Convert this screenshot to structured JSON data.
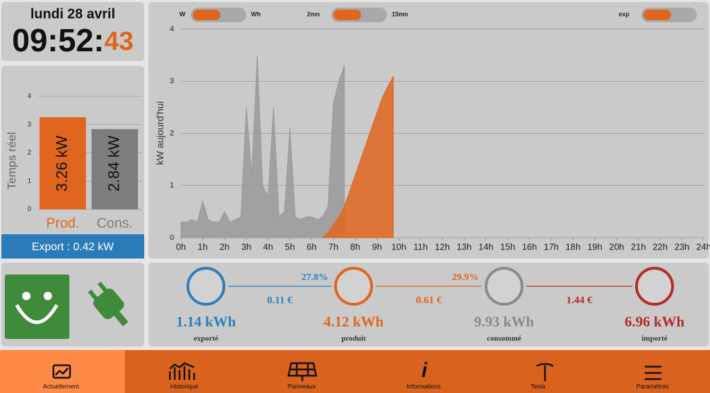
{
  "clock": {
    "date": "lundi 28 avril",
    "time_hm": "09:52:",
    "time_s": "43"
  },
  "realtime_export": "Export : 0.42 kW",
  "toggles": [
    {
      "left": "W",
      "right": "Wh"
    },
    {
      "left": "2mn",
      "right": "15mn"
    },
    {
      "left": "exp",
      "right": null
    }
  ],
  "chart_data": [
    {
      "type": "bar",
      "y_label": "Temps réel",
      "categories": [
        "Prod.",
        "Cons."
      ],
      "values": [
        3.26,
        2.84
      ],
      "value_labels": [
        "3.26 kW",
        "2.84 kW"
      ],
      "colors": [
        "#e0661f",
        "#7d7d7d"
      ],
      "ylim": [
        0,
        4
      ],
      "yticks": [
        0,
        1,
        2,
        3,
        4
      ],
      "grid": true
    },
    {
      "type": "area",
      "y_label": "kW aujourd'hui",
      "series": [
        {
          "color": "#9a9a9a",
          "x": [
            0,
            0.25,
            0.5,
            0.75,
            1,
            1.25,
            1.5,
            1.75,
            2,
            2.25,
            2.5,
            2.75,
            3,
            3.25,
            3.5,
            3.75,
            4,
            4.25,
            4.5,
            4.75,
            5,
            5.25,
            5.5,
            5.75,
            6,
            6.25,
            6.5,
            6.75,
            7,
            7.25,
            7.5
          ],
          "values": [
            0.3,
            0.3,
            0.35,
            0.3,
            0.7,
            0.35,
            0.3,
            0.3,
            0.5,
            0.3,
            0.35,
            0.4,
            2.5,
            1.2,
            3.5,
            1.0,
            0.8,
            2.5,
            0.4,
            0.5,
            2.1,
            0.4,
            0.35,
            0.4,
            0.4,
            0.35,
            0.4,
            0.6,
            2.6,
            3.0,
            3.3
          ]
        },
        {
          "color": "#e0661f",
          "x": [
            6.5,
            6.75,
            7,
            7.25,
            7.5,
            7.75,
            8,
            8.25,
            8.5,
            8.75,
            9,
            9.25,
            9.5,
            9.75
          ],
          "values": [
            0,
            0.1,
            0.25,
            0.4,
            0.6,
            0.9,
            1.2,
            1.5,
            1.8,
            2.1,
            2.4,
            2.7,
            2.9,
            3.1
          ]
        }
      ],
      "xlim": [
        0,
        24
      ],
      "xticks": [
        {
          "value": 0,
          "label": "0h"
        },
        {
          "value": 1,
          "label": "1h"
        },
        {
          "value": 2,
          "label": "2h"
        },
        {
          "value": 3,
          "label": "3h"
        },
        {
          "value": 4,
          "label": "4h"
        },
        {
          "value": 5,
          "label": "5h"
        },
        {
          "value": 6,
          "label": "6h"
        },
        {
          "value": 7,
          "label": "7h"
        },
        {
          "value": 8,
          "label": "8h"
        },
        {
          "value": 9,
          "label": "9h"
        },
        {
          "value": 10,
          "label": "10h"
        },
        {
          "value": 11,
          "label": "11h"
        },
        {
          "value": 12,
          "label": "12h"
        },
        {
          "value": 13,
          "label": "13h"
        },
        {
          "value": 14,
          "label": "14h"
        },
        {
          "value": 15,
          "label": "15h"
        },
        {
          "value": 16,
          "label": "16h"
        },
        {
          "value": 17,
          "label": "17h"
        },
        {
          "value": 18,
          "label": "18h"
        },
        {
          "value": 19,
          "label": "19h"
        },
        {
          "value": 20,
          "label": "20h"
        },
        {
          "value": 21,
          "label": "21h"
        },
        {
          "value": 22,
          "label": "22h"
        },
        {
          "value": 23,
          "label": "23h"
        },
        {
          "value": 24,
          "label": "24h"
        }
      ],
      "ylim": [
        0,
        4
      ],
      "yticks": [
        0,
        1,
        2,
        3,
        4
      ],
      "grid": true
    }
  ],
  "flows": {
    "nodes": [
      {
        "value": "1.14 kWh",
        "label": "exporté",
        "color": "#2f7fb8"
      },
      {
        "value": "4.12 kWh",
        "label": "produit",
        "color": "#e0661f"
      },
      {
        "value": "9.93 kWh",
        "label": "consommé",
        "color": "#8a8a8a"
      },
      {
        "value": "6.96 kWh",
        "label": "importé",
        "color": "#b52a2a"
      }
    ],
    "links": [
      {
        "pct": "27.8%",
        "cost": "0.11 €"
      },
      {
        "pct": "29.9%",
        "cost": "0.61 €"
      },
      {
        "pct": null,
        "cost": "1.44 €"
      }
    ]
  },
  "nav": [
    "Actuellement",
    "Historique",
    "Panneaux",
    "Informations",
    "Tesla",
    "Paramètres"
  ]
}
